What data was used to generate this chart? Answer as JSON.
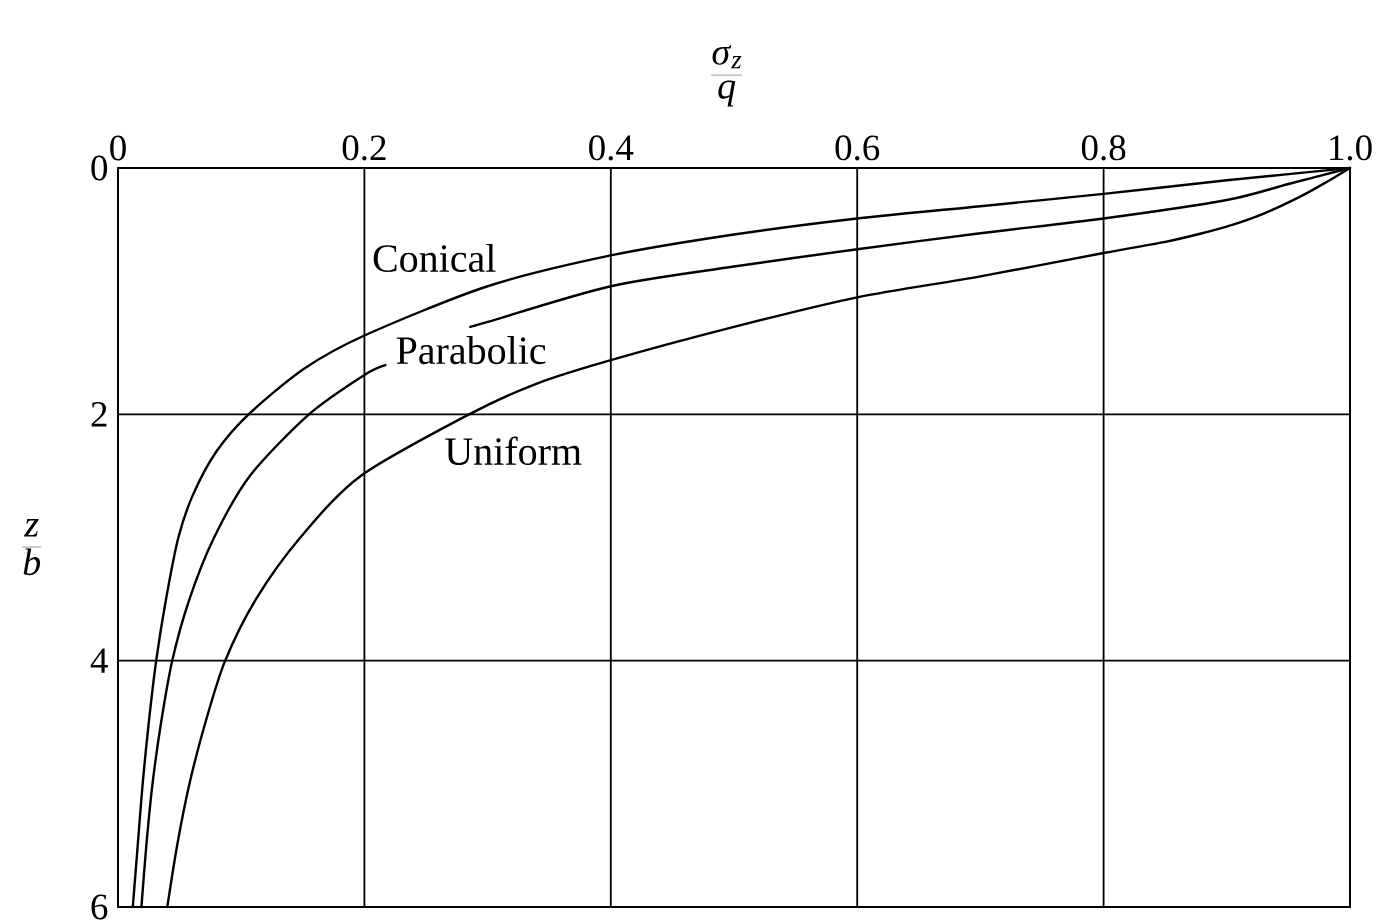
{
  "chart_data": {
    "type": "line",
    "xlabel": "\\frac{\\sigma_z}{q}",
    "ylabel": "\\frac{z}{b}",
    "xlim": [
      0,
      1
    ],
    "ylim": [
      6,
      0
    ],
    "xticks": [
      0,
      0.2,
      0.4,
      0.6,
      0.8,
      {
        "value": 1,
        "label": "1.0"
      }
    ],
    "yticks": [
      0,
      2,
      4,
      6
    ],
    "grid": true,
    "series": [
      {
        "name": "Conical",
        "color": "#000000",
        "x": [
          1.0,
          0.95,
          0.9,
          0.8,
          0.7,
          0.6,
          0.5,
          0.4,
          0.3,
          0.2,
          0.151,
          0.106,
          0.08,
          0.061,
          0.049,
          0.039,
          0.031,
          0.025,
          0.02,
          0.016,
          0.012
        ],
        "values": [
          0,
          0.05,
          0.1,
          0.21,
          0.31,
          0.41,
          0.54,
          0.71,
          0.96,
          1.36,
          1.63,
          2.0,
          2.3,
          2.65,
          3.0,
          3.5,
          4.0,
          4.5,
          5.0,
          5.5,
          6.0
        ]
      },
      {
        "name": "Parabolic",
        "color": "#000000",
        "x": [
          1.0,
          0.95,
          0.9,
          0.8,
          0.7,
          0.6,
          0.5,
          0.4,
          0.3,
          0.286,
          0.25,
          0.217,
          0.2,
          0.155,
          0.107,
          0.078,
          0.058,
          0.044,
          0.035,
          0.028,
          0.023,
          0.019
        ],
        "values": [
          0,
          0.13,
          0.26,
          0.41,
          0.53,
          0.66,
          0.8,
          0.96,
          1.25,
          1.29,
          null,
          1.6,
          1.68,
          2.0,
          2.5,
          3.0,
          3.5,
          4.0,
          4.5,
          5.0,
          5.5,
          6.0
        ]
      },
      {
        "name": "Uniform",
        "color": "#000000",
        "x": [
          1.0,
          0.98,
          0.96,
          0.93,
          0.905,
          0.88,
          0.85,
          0.8,
          0.7,
          0.6,
          0.5,
          0.4,
          0.34,
          0.285,
          0.197,
          0.148,
          0.112,
          0.087,
          0.071,
          0.058,
          0.048,
          0.04
        ],
        "values": [
          0,
          0.12,
          0.23,
          0.37,
          0.46,
          0.53,
          0.6,
          0.69,
          0.88,
          1.05,
          1.29,
          1.56,
          1.75,
          2.0,
          2.5,
          3.0,
          3.5,
          4.0,
          4.5,
          5.0,
          5.5,
          6.0
        ]
      }
    ]
  }
}
